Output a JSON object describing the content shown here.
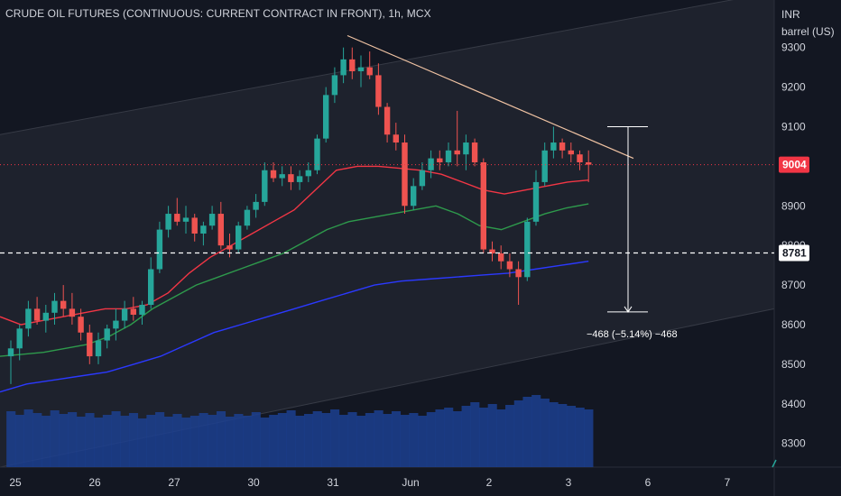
{
  "header": {
    "title": "CRUDE OIL FUTURES (CONTINUOUS: CURRENT CONTRACT IN FRONT), 1h, MCX",
    "unit_line1": "INR",
    "unit_line2": "barrel (US)"
  },
  "chart_data": {
    "type": "candlestick",
    "title": "CRUDE OIL FUTURES (CONTINUOUS: CURRENT CONTRACT IN FRONT), 1h, MCX",
    "ylim": [
      8240,
      9420
    ],
    "y_ticks": [
      9300,
      9200,
      9100,
      9000,
      8900,
      8800,
      8700,
      8600,
      8500,
      8400,
      8300
    ],
    "x_ticks": [
      "25",
      "26",
      "27",
      "30",
      "31",
      "Jun",
      "2",
      "3",
      "6",
      "7"
    ],
    "current_price": {
      "value": 9004,
      "label": "9004",
      "color": "#f23645"
    },
    "level_line": {
      "value": 8781,
      "label": "8781",
      "style": "dashed"
    },
    "measure": {
      "from": 9100,
      "to": 8632,
      "label": "−468 (−5.14%) −468"
    },
    "trendline": {
      "from": 9330,
      "to": 9020
    },
    "channel": {
      "upper": [
        9080,
        9440
      ],
      "lower": [
        8240,
        8640
      ]
    },
    "colors": {
      "up": "#26a69a",
      "down": "#ef5350",
      "ema_fast": "#f23645",
      "ema_mid": "#2e9a4c",
      "ema_slow": "#2b39ff",
      "volume": "#1c3f8f"
    },
    "series": [
      {
        "name": "price",
        "ohlc": [
          [
            8520,
            8560,
            8450,
            8540
          ],
          [
            8540,
            8600,
            8510,
            8590
          ],
          [
            8590,
            8660,
            8570,
            8640
          ],
          [
            8640,
            8670,
            8600,
            8610
          ],
          [
            8610,
            8650,
            8580,
            8630
          ],
          [
            8630,
            8680,
            8600,
            8660
          ],
          [
            8660,
            8700,
            8620,
            8640
          ],
          [
            8640,
            8680,
            8600,
            8620
          ],
          [
            8620,
            8640,
            8560,
            8580
          ],
          [
            8580,
            8600,
            8500,
            8520
          ],
          [
            8520,
            8580,
            8500,
            8560
          ],
          [
            8560,
            8600,
            8540,
            8590
          ],
          [
            8590,
            8640,
            8560,
            8610
          ],
          [
            8610,
            8660,
            8590,
            8640
          ],
          [
            8640,
            8670,
            8610,
            8625
          ],
          [
            8625,
            8660,
            8600,
            8650
          ],
          [
            8650,
            8770,
            8640,
            8740
          ],
          [
            8740,
            8860,
            8730,
            8840
          ],
          [
            8840,
            8900,
            8820,
            8880
          ],
          [
            8880,
            8920,
            8850,
            8860
          ],
          [
            8860,
            8900,
            8830,
            8870
          ],
          [
            8870,
            8880,
            8810,
            8830
          ],
          [
            8830,
            8860,
            8800,
            8850
          ],
          [
            8850,
            8900,
            8840,
            8880
          ],
          [
            8880,
            8910,
            8790,
            8800
          ],
          [
            8800,
            8830,
            8770,
            8790
          ],
          [
            8790,
            8860,
            8780,
            8850
          ],
          [
            8850,
            8900,
            8840,
            8890
          ],
          [
            8890,
            8930,
            8870,
            8910
          ],
          [
            8910,
            9010,
            8900,
            8990
          ],
          [
            8990,
            9010,
            8960,
            8970
          ],
          [
            8970,
            9000,
            8950,
            8980
          ],
          [
            8980,
            9000,
            8940,
            8960
          ],
          [
            8960,
            8990,
            8940,
            8975
          ],
          [
            8975,
            9010,
            8960,
            8990
          ],
          [
            8990,
            9080,
            8980,
            9070
          ],
          [
            9070,
            9200,
            9060,
            9180
          ],
          [
            9180,
            9250,
            9160,
            9230
          ],
          [
            9230,
            9300,
            9210,
            9270
          ],
          [
            9270,
            9300,
            9220,
            9240
          ],
          [
            9240,
            9280,
            9200,
            9250
          ],
          [
            9250,
            9290,
            9220,
            9230
          ],
          [
            9230,
            9260,
            9130,
            9150
          ],
          [
            9150,
            9160,
            9060,
            9080
          ],
          [
            9080,
            9110,
            9040,
            9060
          ],
          [
            9060,
            9080,
            8880,
            8900
          ],
          [
            8900,
            8970,
            8890,
            8950
          ],
          [
            8950,
            9010,
            8940,
            8990
          ],
          [
            8990,
            9040,
            8970,
            9020
          ],
          [
            9020,
            9040,
            8990,
            9010
          ],
          [
            9010,
            9060,
            9000,
            9040
          ],
          [
            9040,
            9140,
            9000,
            9030
          ],
          [
            9030,
            9080,
            8990,
            9060
          ],
          [
            9060,
            9070,
            9000,
            9010
          ],
          [
            9010,
            9020,
            8780,
            8790
          ],
          [
            8790,
            8810,
            8760,
            8780
          ],
          [
            8780,
            8800,
            8740,
            8760
          ],
          [
            8760,
            8780,
            8720,
            8740
          ],
          [
            8740,
            8760,
            8650,
            8720
          ],
          [
            8720,
            8870,
            8710,
            8860
          ],
          [
            8860,
            8990,
            8850,
            8960
          ],
          [
            8960,
            9060,
            8950,
            9040
          ],
          [
            9040,
            9100,
            9020,
            9060
          ],
          [
            9060,
            9070,
            9020,
            9040
          ],
          [
            9040,
            9060,
            9010,
            9030
          ],
          [
            9030,
            9040,
            8990,
            9010
          ],
          [
            9010,
            9040,
            8960,
            9004
          ]
        ]
      },
      {
        "name": "ema_fast",
        "values": [
          8620,
          8600,
          8610,
          8620,
          8630,
          8640,
          8640,
          8650,
          8680,
          8730,
          8770,
          8800,
          8830,
          8860,
          8890,
          8940,
          8990,
          9000,
          9000,
          8995,
          8990,
          8980,
          8960,
          8940,
          8930,
          8940,
          8950,
          8960,
          8965
        ]
      },
      {
        "name": "ema_mid",
        "values": [
          8520,
          8525,
          8530,
          8540,
          8550,
          8570,
          8600,
          8640,
          8670,
          8700,
          8720,
          8740,
          8760,
          8780,
          8810,
          8840,
          8860,
          8870,
          8880,
          8890,
          8900,
          8880,
          8850,
          8840,
          8860,
          8880,
          8895,
          8905
        ]
      },
      {
        "name": "ema_slow",
        "values": [
          8430,
          8450,
          8460,
          8470,
          8480,
          8500,
          8520,
          8550,
          8580,
          8600,
          8620,
          8640,
          8660,
          8680,
          8700,
          8710,
          8715,
          8720,
          8725,
          8730,
          8740,
          8750,
          8760
        ]
      }
    ]
  }
}
